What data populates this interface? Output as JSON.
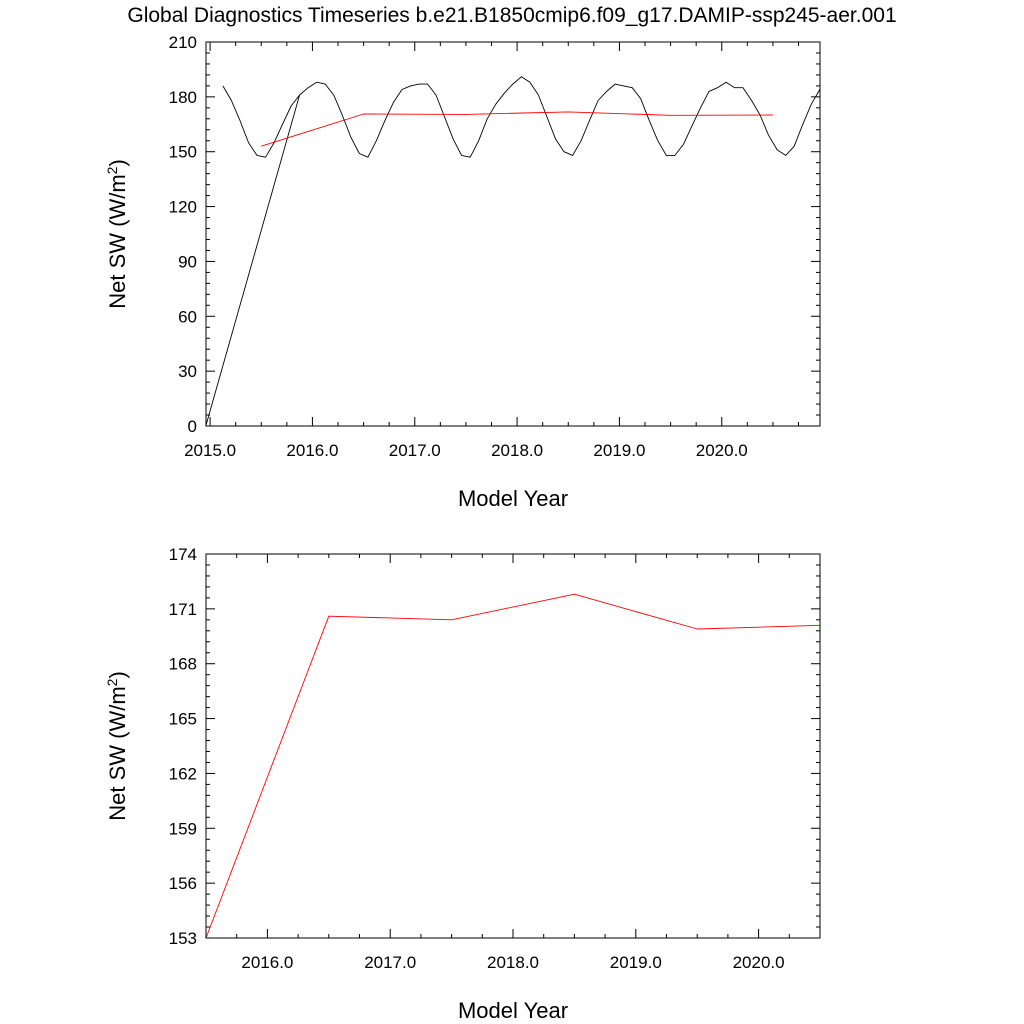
{
  "title": "Global Diagnostics Timeseries b.e21.B1850cmip6.f09_g17.DAMIP-ssp245-aer.001",
  "colors": {
    "monthly_line": "#000000",
    "annual_line": "#ff0000",
    "axes": "#000000"
  },
  "chart_data": [
    {
      "type": "line",
      "xlabel": "Model Year",
      "ylabel": "Net SW (W/m",
      "ylabel_superscript": "2",
      "ylabel_close": ")",
      "xlim": [
        2014.96,
        2020.96
      ],
      "ylim": [
        0,
        210
      ],
      "x_ticks": [
        2015.0,
        2016.0,
        2017.0,
        2018.0,
        2019.0,
        2020.0
      ],
      "x_tick_labels": [
        "2015.0",
        "2016.0",
        "2017.0",
        "2018.0",
        "2019.0",
        "2020.0"
      ],
      "y_ticks": [
        0,
        30,
        60,
        90,
        120,
        150,
        180,
        210
      ],
      "y_tick_labels": [
        "0",
        "30",
        "60",
        "90",
        "120",
        "150",
        "180",
        "210"
      ],
      "grid": false,
      "series": [
        {
          "color": "#000000",
          "x": [
            2015.125,
            2015.208,
            2015.292,
            2015.375,
            2015.458,
            2015.542,
            2015.625,
            2015.708,
            2015.792,
            2015.875,
            2014.958,
            2015.875,
            2015.958,
            2016.042,
            2016.125,
            2016.208,
            2016.292,
            2016.375,
            2016.458,
            2016.542,
            2016.625,
            2016.708,
            2016.792,
            2016.875,
            2016.958,
            2017.042,
            2017.125,
            2017.208,
            2017.292,
            2017.375,
            2017.458,
            2017.542,
            2017.625,
            2017.708,
            2017.792,
            2017.875,
            2017.958,
            2018.042,
            2018.125,
            2018.208,
            2018.292,
            2018.375,
            2018.458,
            2018.542,
            2018.625,
            2018.708,
            2018.792,
            2018.875,
            2018.958,
            2019.042,
            2019.125,
            2019.208,
            2019.292,
            2019.375,
            2019.458,
            2019.542,
            2019.625,
            2019.708,
            2019.792,
            2019.875,
            2019.958,
            2020.042,
            2020.125,
            2020.208,
            2020.292,
            2020.375,
            2020.458,
            2020.542,
            2020.625,
            2020.708,
            2020.792,
            2020.875,
            2020.958
          ],
          "values": [
            186,
            178,
            167,
            155,
            148,
            147,
            155,
            165,
            175,
            181,
            0,
            181,
            185,
            188,
            187,
            181,
            170,
            158,
            149,
            147,
            156,
            167,
            177,
            184,
            186,
            187,
            187,
            181,
            169,
            157,
            148,
            147,
            156,
            168,
            176,
            182,
            187,
            191,
            188,
            181,
            169,
            157,
            150,
            148,
            156,
            167,
            178,
            183,
            187,
            186,
            185,
            179,
            167,
            156,
            148,
            148,
            154,
            164,
            174,
            183,
            185,
            188,
            185,
            185,
            178,
            170,
            159,
            151,
            148,
            153,
            165,
            176,
            184
          ]
        },
        {
          "color": "#ff0000",
          "x": [
            2015.5,
            2016.5,
            2017.5,
            2018.5,
            2019.5,
            2020.5
          ],
          "values": [
            153.0,
            170.6,
            170.4,
            171.8,
            169.9,
            170.1
          ]
        }
      ]
    },
    {
      "type": "line",
      "xlabel": "Model Year",
      "ylabel": "Net SW (W/m",
      "ylabel_superscript": "2",
      "ylabel_close": ")",
      "xlim": [
        2015.5,
        2020.5
      ],
      "ylim": [
        153,
        174
      ],
      "x_ticks": [
        2016.0,
        2017.0,
        2018.0,
        2019.0,
        2020.0
      ],
      "x_tick_labels": [
        "2016.0",
        "2017.0",
        "2018.0",
        "2019.0",
        "2020.0"
      ],
      "y_ticks": [
        153,
        156,
        159,
        162,
        165,
        168,
        171,
        174
      ],
      "y_tick_labels": [
        "153",
        "156",
        "159",
        "162",
        "165",
        "168",
        "171",
        "174"
      ],
      "grid": false,
      "series": [
        {
          "color": "#ff0000",
          "x": [
            2015.5,
            2016.5,
            2017.5,
            2018.5,
            2019.5,
            2020.5
          ],
          "values": [
            153.0,
            170.6,
            170.4,
            171.8,
            169.9,
            170.1
          ]
        }
      ]
    }
  ]
}
